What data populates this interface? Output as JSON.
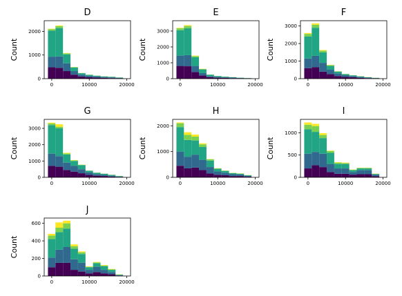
{
  "chart_data": [
    {
      "type": "bar",
      "title": "D",
      "ylabel": "Count",
      "xlabel": "",
      "xticks": [
        0,
        10000,
        20000
      ],
      "xtick_labels": [
        "0",
        "10000",
        "20000"
      ],
      "yticks": [
        0,
        1000,
        2000
      ],
      "ytick_labels": [
        "0",
        "1000",
        "2000"
      ],
      "xlim": [
        -2000,
        21000
      ],
      "ylim": [
        0,
        2450
      ],
      "bin_edges": [
        -1000,
        1000,
        3000,
        5000,
        7000,
        9000,
        11000,
        13000,
        15000,
        17000,
        19000
      ],
      "series": [
        {
          "values": [
            480,
            460,
            320,
            170,
            90,
            60,
            45,
            35,
            25,
            15
          ]
        },
        {
          "values": [
            450,
            480,
            330,
            150,
            80,
            60,
            50,
            35,
            30,
            20
          ]
        },
        {
          "values": [
            1100,
            1200,
            380,
            150,
            60,
            40,
            30,
            25,
            20,
            15
          ]
        },
        {
          "values": [
            60,
            80,
            40,
            20,
            8,
            5,
            5,
            5,
            3,
            3
          ]
        },
        {
          "values": [
            20,
            30,
            15,
            5,
            2,
            2,
            2,
            2,
            2,
            2
          ]
        }
      ]
    },
    {
      "type": "bar",
      "title": "E",
      "ylabel": "Count",
      "xlabel": "",
      "xticks": [
        0,
        10000,
        20000
      ],
      "xtick_labels": [
        "0",
        "10000",
        "20000"
      ],
      "yticks": [
        0,
        1000,
        2000,
        3000
      ],
      "ytick_labels": [
        "0",
        "1000",
        "2000",
        "3000"
      ],
      "xlim": [
        -2000,
        21000
      ],
      "ylim": [
        0,
        3650
      ],
      "bin_edges": [
        -1000,
        1000,
        3000,
        5000,
        7000,
        9000,
        11000,
        13000,
        15000,
        17000,
        19000
      ],
      "series": [
        {
          "values": [
            800,
            780,
            420,
            200,
            90,
            60,
            50,
            35,
            25,
            15
          ]
        },
        {
          "values": [
            650,
            700,
            380,
            150,
            70,
            50,
            40,
            30,
            20,
            15
          ]
        },
        {
          "values": [
            1600,
            1700,
            550,
            230,
            90,
            50,
            35,
            25,
            15,
            10
          ]
        },
        {
          "values": [
            120,
            140,
            70,
            30,
            10,
            8,
            5,
            4,
            3,
            2
          ]
        },
        {
          "values": [
            30,
            50,
            30,
            10,
            3,
            2,
            2,
            2,
            2,
            2
          ]
        }
      ]
    },
    {
      "type": "bar",
      "title": "F",
      "ylabel": "Count",
      "xlabel": "",
      "xticks": [
        0,
        10000,
        20000
      ],
      "xtick_labels": [
        "0",
        "10000",
        "20000"
      ],
      "yticks": [
        0,
        1000,
        2000,
        3000
      ],
      "ytick_labels": [
        "0",
        "1000",
        "2000",
        "3000"
      ],
      "xlim": [
        -2000,
        21000
      ],
      "ylim": [
        0,
        3300
      ],
      "bin_edges": [
        -1000,
        1000,
        3000,
        5000,
        7000,
        9000,
        11000,
        13000,
        15000,
        17000,
        19000
      ],
      "series": [
        {
          "values": [
            600,
            650,
            400,
            260,
            150,
            100,
            80,
            50,
            30,
            15
          ]
        },
        {
          "values": [
            550,
            650,
            500,
            250,
            150,
            100,
            70,
            50,
            30,
            20
          ]
        },
        {
          "values": [
            1250,
            1600,
            600,
            220,
            100,
            60,
            40,
            30,
            20,
            10
          ]
        },
        {
          "values": [
            150,
            170,
            90,
            40,
            20,
            10,
            5,
            5,
            5,
            3
          ]
        },
        {
          "values": [
            50,
            80,
            40,
            20,
            5,
            5,
            5,
            5,
            5,
            2
          ]
        }
      ]
    },
    {
      "type": "bar",
      "title": "G",
      "ylabel": "Count",
      "xlabel": "",
      "xticks": [
        0,
        10000,
        20000
      ],
      "xtick_labels": [
        "0",
        "10000",
        "20000"
      ],
      "yticks": [
        0,
        1000,
        2000,
        3000
      ],
      "ytick_labels": [
        "0",
        "1000",
        "2000",
        "3000"
      ],
      "xlim": [
        -2000,
        21000
      ],
      "ylim": [
        0,
        3550
      ],
      "bin_edges": [
        -1000,
        1000,
        3000,
        5000,
        7000,
        9000,
        11000,
        13000,
        15000,
        17000,
        19000
      ],
      "series": [
        {
          "values": [
            700,
            650,
            450,
            350,
            250,
            150,
            100,
            80,
            50,
            25
          ]
        },
        {
          "values": [
            750,
            650,
            450,
            350,
            250,
            150,
            100,
            70,
            50,
            25
          ]
        },
        {
          "values": [
            1750,
            1700,
            500,
            300,
            250,
            100,
            80,
            70,
            50,
            30
          ]
        },
        {
          "values": [
            100,
            100,
            60,
            40,
            20,
            10,
            5,
            5,
            5,
            5
          ]
        },
        {
          "values": [
            50,
            150,
            40,
            20,
            10,
            5,
            5,
            5,
            5,
            5
          ]
        }
      ]
    },
    {
      "type": "bar",
      "title": "H",
      "ylabel": "Count",
      "xlabel": "",
      "xticks": [
        0,
        10000,
        20000
      ],
      "xtick_labels": [
        "0",
        "10000",
        "20000"
      ],
      "yticks": [
        0,
        1000,
        2000
      ],
      "ytick_labels": [
        "0",
        "1000",
        "2000"
      ],
      "xlim": [
        -2000,
        21000
      ],
      "ylim": [
        0,
        2250
      ],
      "bin_edges": [
        -1000,
        1000,
        3000,
        5000,
        7000,
        9000,
        11000,
        13000,
        15000,
        17000,
        19000
      ],
      "series": [
        {
          "values": [
            450,
            350,
            380,
            280,
            150,
            100,
            80,
            50,
            50,
            25
          ]
        },
        {
          "values": [
            550,
            450,
            500,
            400,
            250,
            130,
            100,
            70,
            60,
            35
          ]
        },
        {
          "values": [
            950,
            650,
            550,
            500,
            250,
            100,
            70,
            40,
            30,
            20
          ]
        },
        {
          "values": [
            150,
            200,
            150,
            100,
            50,
            20,
            10,
            10,
            10,
            5
          ]
        },
        {
          "values": [
            30,
            100,
            80,
            40,
            10,
            5,
            5,
            5,
            5,
            5
          ]
        }
      ]
    },
    {
      "type": "bar",
      "title": "I",
      "ylabel": "Count",
      "xlabel": "",
      "xticks": [
        0,
        10000,
        20000
      ],
      "xtick_labels": [
        "0",
        "10000",
        "20000"
      ],
      "yticks": [
        0,
        500,
        1000
      ],
      "ytick_labels": [
        "0",
        "500",
        "1000"
      ],
      "xlim": [
        -2000,
        21000
      ],
      "ylim": [
        0,
        1300
      ],
      "bin_edges": [
        -1000,
        1000,
        3000,
        5000,
        7000,
        9000,
        11000,
        13000,
        15000,
        17000,
        19000
      ],
      "series": [
        {
          "values": [
            200,
            270,
            230,
            120,
            80,
            80,
            60,
            70,
            70,
            25
          ]
        },
        {
          "values": [
            330,
            300,
            300,
            180,
            120,
            120,
            60,
            90,
            90,
            35
          ]
        },
        {
          "values": [
            550,
            450,
            350,
            250,
            100,
            100,
            40,
            40,
            40,
            15
          ]
        },
        {
          "values": [
            100,
            130,
            70,
            40,
            30,
            20,
            10,
            10,
            10,
            5
          ]
        },
        {
          "values": [
            50,
            50,
            40,
            10,
            10,
            10,
            5,
            5,
            5,
            5
          ]
        }
      ]
    },
    {
      "type": "bar",
      "title": "J",
      "ylabel": "Count",
      "xlabel": "",
      "xticks": [
        0,
        10000,
        20000
      ],
      "xtick_labels": [
        "0",
        "10000",
        "20000"
      ],
      "yticks": [
        0,
        200,
        400,
        600
      ],
      "ytick_labels": [
        "0",
        "200",
        "400",
        "600"
      ],
      "xlim": [
        -2000,
        21000
      ],
      "ylim": [
        0,
        660
      ],
      "bin_edges": [
        -1000,
        1000,
        3000,
        5000,
        7000,
        9000,
        11000,
        13000,
        15000,
        17000,
        19000
      ],
      "series": [
        {
          "values": [
            100,
            150,
            150,
            70,
            50,
            30,
            45,
            30,
            20,
            5
          ]
        },
        {
          "values": [
            110,
            150,
            180,
            120,
            100,
            40,
            60,
            40,
            25,
            5
          ]
        },
        {
          "values": [
            210,
            200,
            210,
            120,
            100,
            30,
            40,
            40,
            25,
            5
          ]
        },
        {
          "values": [
            40,
            50,
            60,
            30,
            20,
            5,
            10,
            10,
            5,
            3
          ]
        },
        {
          "values": [
            20,
            60,
            30,
            20,
            10,
            5,
            5,
            5,
            5,
            2
          ]
        }
      ]
    }
  ],
  "colors": [
    "#440154",
    "#31688e",
    "#21a585",
    "#7ad151",
    "#fde725"
  ],
  "layout": {
    "rows": 3,
    "cols": 3
  }
}
